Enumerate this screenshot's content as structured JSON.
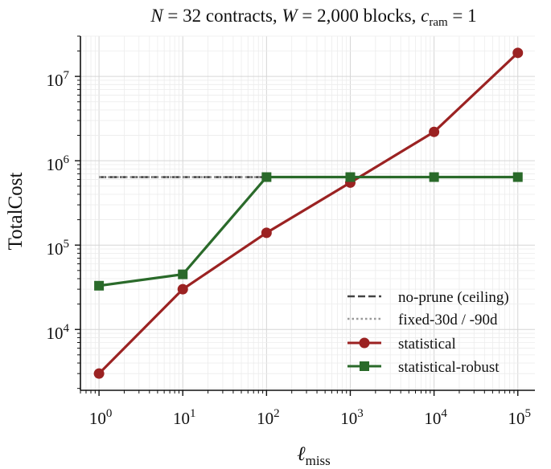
{
  "chart_data": {
    "type": "line",
    "title": {
      "n_var": "N",
      "n_part": " = 32 contracts, ",
      "w_var": "W",
      "w_part": " = 2,000 blocks, ",
      "c_var": "c",
      "c_sub": "ram",
      "c_part": " = 1"
    },
    "xlabel": {
      "var": "ℓ",
      "sub": "miss"
    },
    "ylabel": "TotalCost",
    "xscale": "log",
    "yscale": "log",
    "xlim": [
      0.6,
      160000
    ],
    "ylim": [
      1900,
      30000000
    ],
    "grid": true,
    "x": [
      1,
      10,
      100,
      1000,
      10000,
      100000
    ],
    "x_ticks": [
      {
        "base": "10",
        "exp": "0",
        "value": 1
      },
      {
        "base": "10",
        "exp": "1",
        "value": 10
      },
      {
        "base": "10",
        "exp": "2",
        "value": 100
      },
      {
        "base": "10",
        "exp": "3",
        "value": 1000
      },
      {
        "base": "10",
        "exp": "4",
        "value": 10000
      },
      {
        "base": "10",
        "exp": "5",
        "value": 100000
      }
    ],
    "y_ticks": [
      {
        "base": "10",
        "exp": "4",
        "value": 10000
      },
      {
        "base": "10",
        "exp": "5",
        "value": 100000
      },
      {
        "base": "10",
        "exp": "6",
        "value": 1000000
      },
      {
        "base": "10",
        "exp": "7",
        "value": 10000000
      }
    ],
    "series": [
      {
        "name": "no-prune (ceiling)",
        "style": "dashed",
        "marker": "none",
        "color": "#444444",
        "values": [
          640000,
          640000,
          640000,
          640000,
          640000,
          640000
        ]
      },
      {
        "name": "fixed-30d / -90d",
        "style": "dotted",
        "marker": "none",
        "color": "#999999",
        "values": [
          640000,
          640000,
          640000,
          640000,
          640000,
          640000
        ]
      },
      {
        "name": "statistical",
        "style": "solid",
        "marker": "circle",
        "color": "#9b2222",
        "values": [
          3000,
          30000,
          140000,
          550000,
          2200000,
          19000000
        ]
      },
      {
        "name": "statistical-robust",
        "style": "solid",
        "marker": "square",
        "color": "#2a6a2a",
        "values": [
          33000,
          45000,
          640000,
          640000,
          640000,
          640000
        ]
      }
    ],
    "legend_position": "lower-right"
  }
}
